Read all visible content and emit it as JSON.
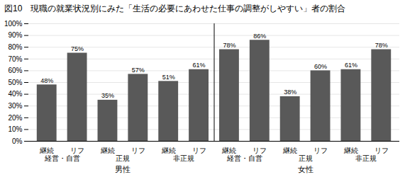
{
  "chart_data": {
    "type": "bar",
    "title": "図10　現職の就業状況別にみた「生活の必要にあわせた仕事の調整がしやすい」者の割合",
    "categories": [
      "継続",
      "リフ",
      "継続",
      "リフ",
      "継続",
      "リフ",
      "継続",
      "リフ",
      "継続",
      "リフ",
      "継続",
      "リフ"
    ],
    "groups": [
      "経営・自営",
      "経営・自営",
      "正規",
      "正規",
      "非正規",
      "非正規",
      "経営・自営",
      "経営・自営",
      "正規",
      "正規",
      "非正規",
      "非正規"
    ],
    "genders": [
      "男性",
      "男性",
      "男性",
      "男性",
      "男性",
      "男性",
      "女性",
      "女性",
      "女性",
      "女性",
      "女性",
      "女性"
    ],
    "values": [
      48,
      75,
      35,
      57,
      51,
      61,
      78,
      86,
      38,
      60,
      61,
      78
    ],
    "value_labels": [
      "48%",
      "75%",
      "35%",
      "57%",
      "51%",
      "61%",
      "78%",
      "86%",
      "38%",
      "60%",
      "61%",
      "78%"
    ],
    "data_labels": true,
    "color": "#595959",
    "ylim": [
      0,
      100
    ],
    "yticks": [
      {
        "value": 0,
        "label": "0%"
      },
      {
        "value": 10,
        "label": "10%"
      },
      {
        "value": 20,
        "label": "20%"
      },
      {
        "value": 30,
        "label": "30%"
      },
      {
        "value": 40,
        "label": "40%"
      },
      {
        "value": 50,
        "label": "50%"
      },
      {
        "value": 60,
        "label": "60%"
      },
      {
        "value": 70,
        "label": "70%"
      },
      {
        "value": 80,
        "label": "80%"
      },
      {
        "value": 90,
        "label": "90%"
      },
      {
        "value": 100,
        "label": "100%"
      }
    ],
    "grid": true
  }
}
